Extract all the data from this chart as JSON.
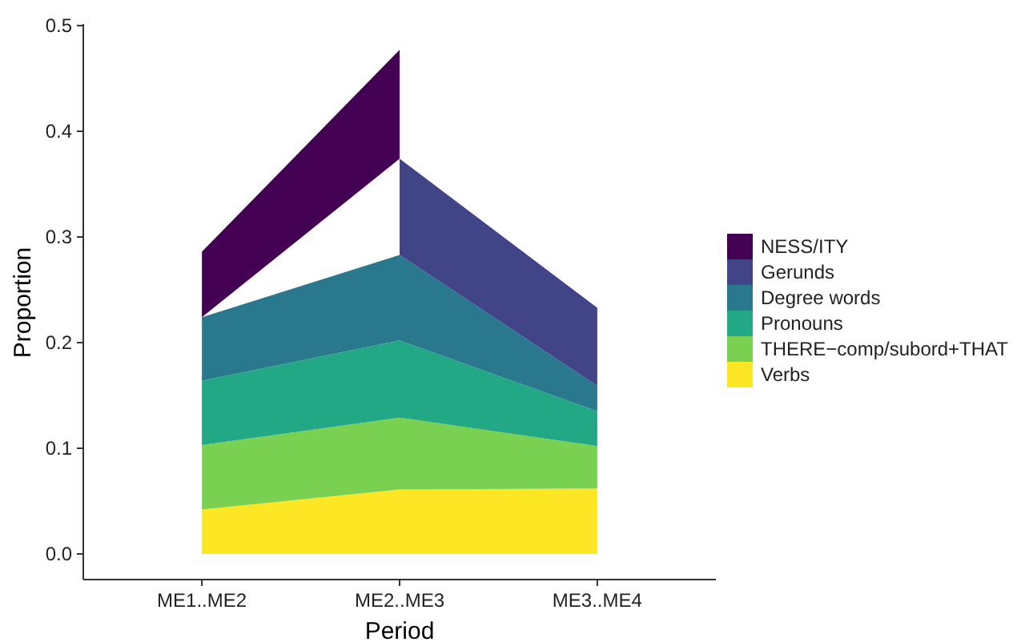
{
  "chart_data": {
    "type": "area",
    "stacked": true,
    "xlabel": "Period",
    "ylabel": "Proportion",
    "categories": [
      "ME1..ME2",
      "ME2..ME3",
      "ME3..ME4"
    ],
    "ylim": [
      0,
      0.5
    ],
    "yticks": [
      {
        "value": 0,
        "label": "0.0"
      },
      0.1,
      0.2,
      0.3,
      0.4,
      0.5
    ],
    "grid": false,
    "legend": "right",
    "series": [
      {
        "name": "Verbs",
        "color": "#fde725",
        "values": [
          0.042,
          0.061,
          0.062
        ]
      },
      {
        "name": "THERE−comp/subord+THAT",
        "color": "#7ad151",
        "values": [
          0.061,
          0.068,
          0.04
        ]
      },
      {
        "name": "Pronouns",
        "color": "#22a884",
        "values": [
          0.061,
          0.073,
          0.033
        ]
      },
      {
        "name": "Degree words",
        "color": "#2a788e",
        "values": [
          0.06,
          0.081,
          0.024
        ]
      },
      {
        "name": "Gerunds",
        "color": "#414487",
        "values": [
          null,
          0.091,
          0.074
        ]
      },
      {
        "name": "NESS/ITY",
        "color": "#440154",
        "values": [
          0.062,
          0.103,
          null
        ]
      }
    ]
  }
}
